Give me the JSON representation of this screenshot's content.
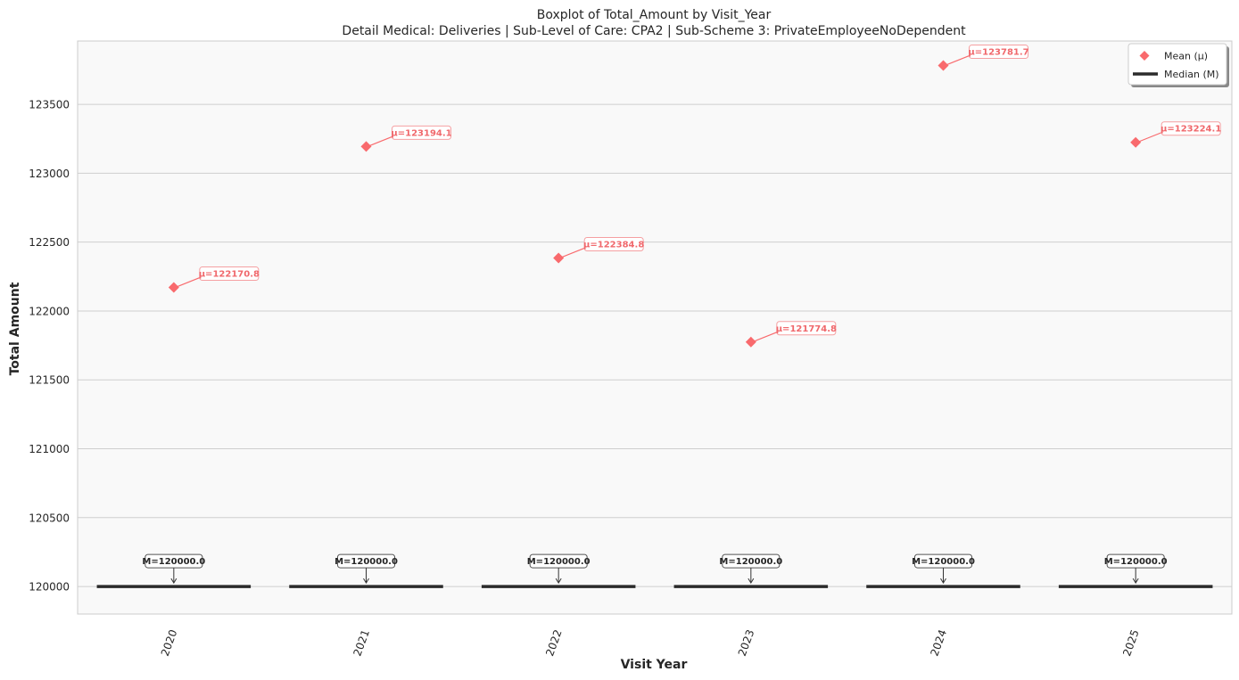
{
  "chart_data": {
    "type": "box",
    "title": "Boxplot of Total_Amount by Visit_Year",
    "subtitle": "Detail Medical: Deliveries | Sub-Level of Care: CPA2 | Sub-Scheme 3: PrivateEmployeeNoDependent",
    "xlabel": "Visit Year",
    "ylabel": "Total Amount",
    "categories": [
      "2020",
      "2021",
      "2022",
      "2023",
      "2024",
      "2025"
    ],
    "medians": [
      120000.0,
      120000.0,
      120000.0,
      120000.0,
      120000.0,
      120000.0
    ],
    "means": [
      122170.8,
      123194.1,
      122384.8,
      121774.8,
      123781.7,
      123224.1
    ],
    "mean_labels": [
      "μ=122170.8",
      "μ=123194.1",
      "μ=122384.8",
      "μ=121774.8",
      "μ=123781.7",
      "μ=123224.1"
    ],
    "median_labels": [
      "M=120000.0",
      "M=120000.0",
      "M=120000.0",
      "M=120000.0",
      "M=120000.0",
      "M=120000.0"
    ],
    "ylim": [
      119800,
      123960
    ],
    "yticks": [
      120000,
      120500,
      121000,
      121500,
      122000,
      122500,
      123000,
      123500
    ],
    "grid": "horizontal",
    "legend": {
      "placement": "top-right",
      "entries": [
        {
          "label": "Mean (μ)",
          "marker": "diamond"
        },
        {
          "label": "Median (M)",
          "marker": "line"
        }
      ]
    },
    "colors": {
      "mean": "#f96a6d",
      "median": "#2b2b2b",
      "plot_background": "#f9f9f9",
      "grid": "#cfcfcf"
    }
  }
}
